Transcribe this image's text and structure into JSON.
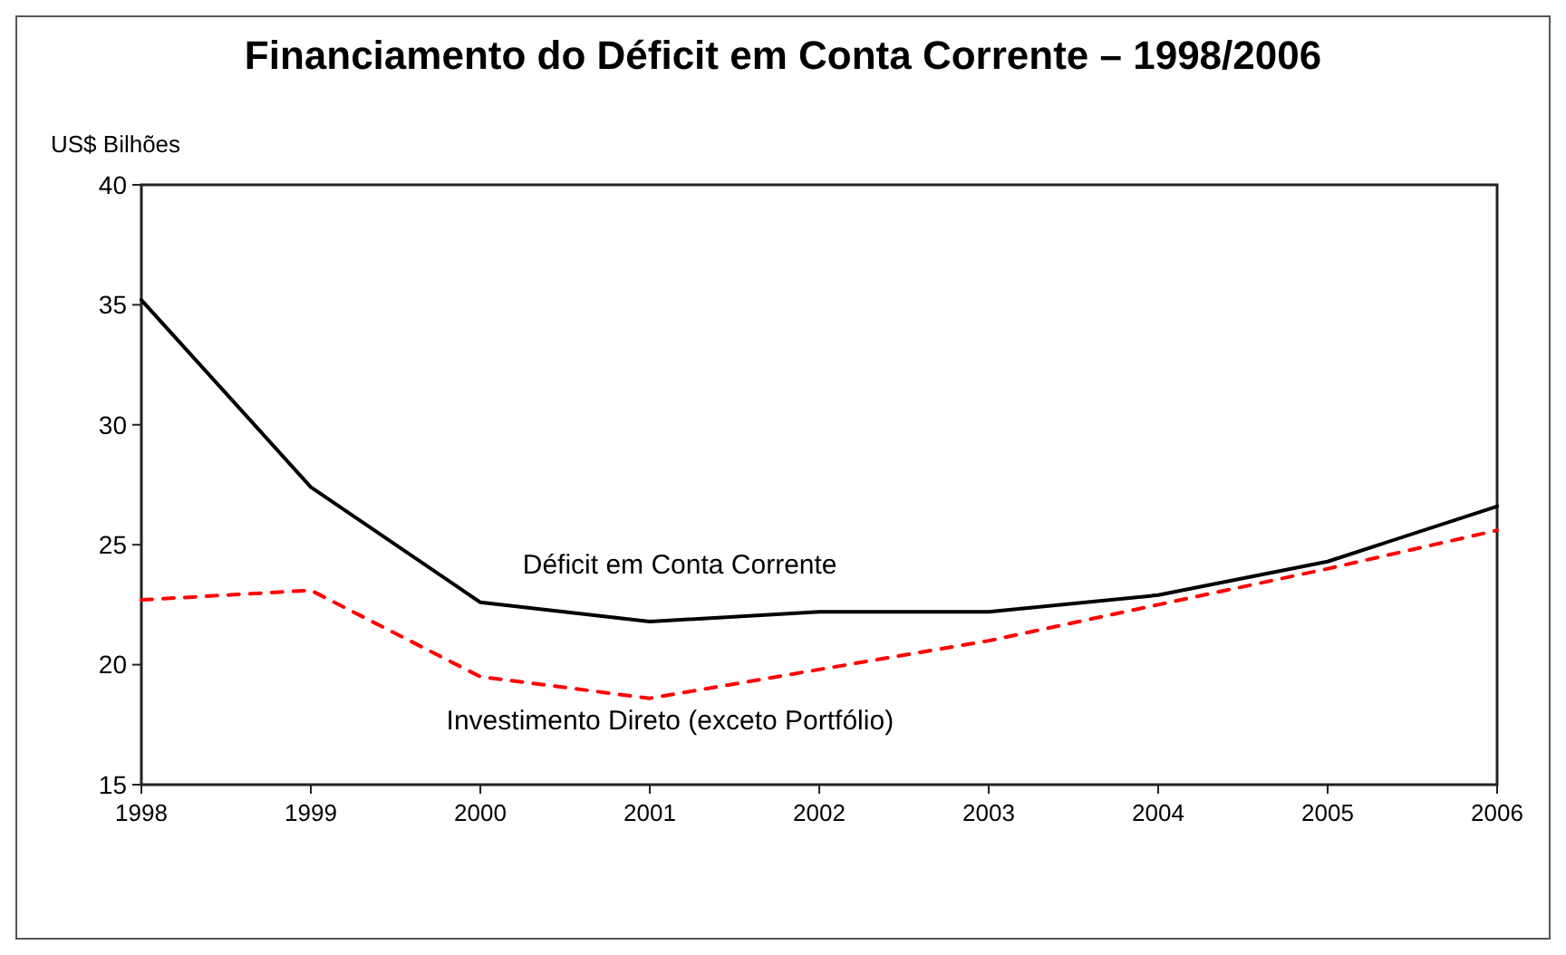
{
  "chart_data": {
    "type": "line",
    "title": "Financiamento do Déficit em Conta Corrente – 1998/2006",
    "ylabel": "US$ Bilhões",
    "x": [
      1998,
      1999,
      2000,
      2001,
      2002,
      2003,
      2004,
      2005,
      2006
    ],
    "xlim": [
      1998,
      2006
    ],
    "xticks": [
      1998,
      1999,
      2000,
      2001,
      2002,
      2003,
      2004,
      2005,
      2006
    ],
    "ylim": [
      15,
      40
    ],
    "yticks": [
      15,
      20,
      25,
      30,
      35,
      40
    ],
    "marker": "none",
    "series": [
      {
        "name": "Déficit em Conta Corrente",
        "color": "#000000",
        "line_style": "solid",
        "values": [
          35.2,
          27.4,
          22.6,
          21.8,
          22.2,
          22.2,
          22.9,
          24.3,
          26.6
        ]
      },
      {
        "name": "Investimento Direto (exceto Portfólio)",
        "color": "#ff0000",
        "line_style": "dashed",
        "values": [
          22.7,
          23.1,
          19.5,
          18.6,
          19.8,
          21.0,
          22.5,
          24.0,
          25.6
        ]
      }
    ]
  }
}
